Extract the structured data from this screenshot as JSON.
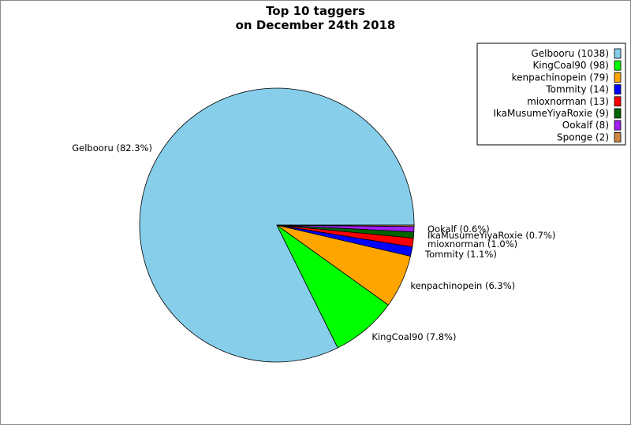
{
  "chart_data": {
    "type": "pie",
    "title_line1": "Top 10 taggers",
    "title_line2": "on December 24th 2018",
    "slices": [
      {
        "name": "Gelbooru",
        "value": 1038,
        "pct_label": "Gelbooru (82.3%)",
        "legend": "Gelbooru (1038)",
        "color": "#87ceeb"
      },
      {
        "name": "KingCoal90",
        "value": 98,
        "pct_label": "KingCoal90 (7.8%)",
        "legend": "KingCoal90 (98)",
        "color": "#00ff00"
      },
      {
        "name": "kenpachinopein",
        "value": 79,
        "pct_label": "kenpachinopein (6.3%)",
        "legend": "kenpachinopein (79)",
        "color": "#ffa500"
      },
      {
        "name": "Tommity",
        "value": 14,
        "pct_label": "Tommity (1.1%)",
        "legend": "Tommity (14)",
        "color": "#0000ff"
      },
      {
        "name": "mioxnorman",
        "value": 13,
        "pct_label": "mioxnorman (1.0%)",
        "legend": "mioxnorman (13)",
        "color": "#ff0000"
      },
      {
        "name": "IkaMusumeYiyaRoxie",
        "value": 9,
        "pct_label": "IkaMusumeYiyaRoxie (0.7%)",
        "legend": "IkaMusumeYiyaRoxie (9)",
        "color": "#006400"
      },
      {
        "name": "Ookalf",
        "value": 8,
        "pct_label": "Ookalf (0.6%)",
        "legend": "Ookalf (8)",
        "color": "#a020f0"
      },
      {
        "name": "Sponge",
        "value": 2,
        "pct_label": "",
        "legend": "Sponge (2)",
        "color": "#cd853f"
      }
    ],
    "legend_position": "top-right"
  }
}
